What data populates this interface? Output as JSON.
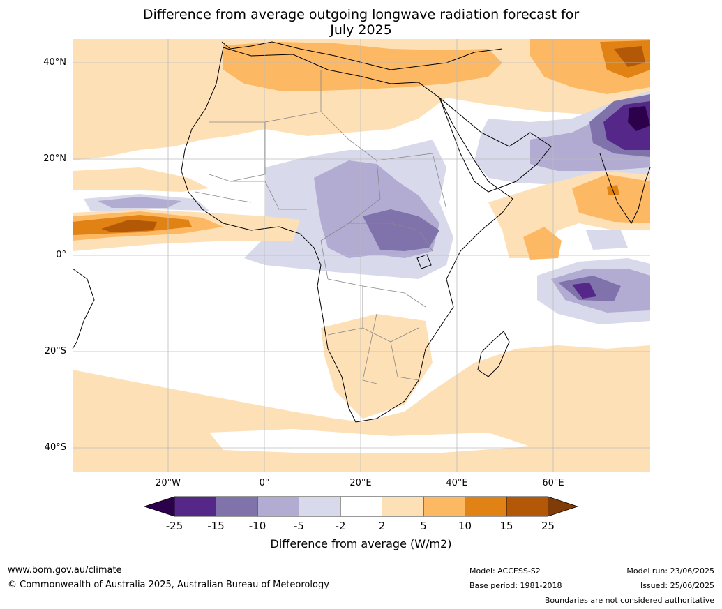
{
  "title_line1": "Difference from average outgoing longwave radiation forecast for",
  "title_line2": "July 2025",
  "lat_labels": [
    "40°N",
    "20°N",
    "0°",
    "20°S",
    "40°S"
  ],
  "lon_labels": [
    "20°W",
    "0°",
    "20°E",
    "40°E",
    "60°E"
  ],
  "colorbar": {
    "ticks": [
      "-25",
      "-15",
      "-10",
      "-5",
      "-2",
      "2",
      "5",
      "10",
      "15",
      "25"
    ],
    "colors": [
      "#2d004b",
      "#542788",
      "#8073ac",
      "#b2abd2",
      "#d8daeb",
      "#ffffff",
      "#fee0b6",
      "#fdb863",
      "#e08214",
      "#b35806",
      "#7f3b08"
    ],
    "label": "Difference from average (W/m2)"
  },
  "footer": {
    "url": "www.bom.gov.au/climate",
    "copyright": "© Commonwealth of Australia 2025, Australian Bureau of Meteorology",
    "model": "Model: ACCESS-S2",
    "base_period": "Base period: 1981-2018",
    "model_run": "Model run: 23/06/2025",
    "issued": "Issued: 25/06/2025",
    "disclaimer": "Boundaries are not considered authoritative"
  }
}
